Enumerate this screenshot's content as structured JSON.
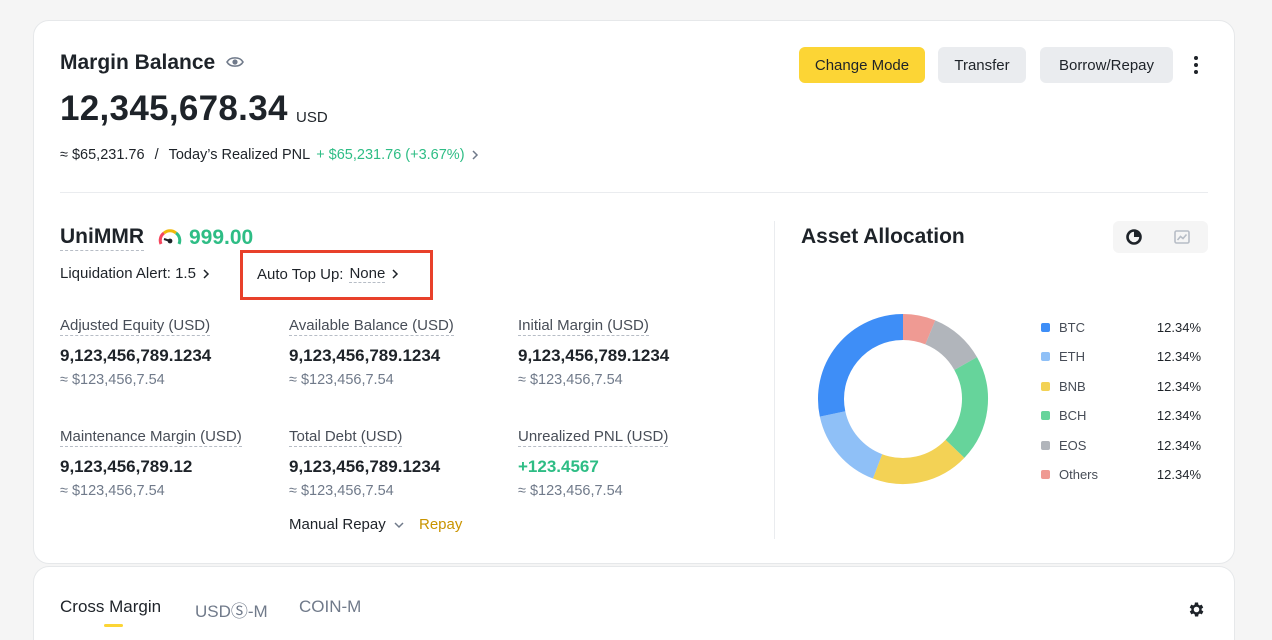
{
  "header": {
    "title": "Margin Balance",
    "balance": "12,345,678.34",
    "unit": "USD",
    "approx": "≈ $65,231.76",
    "separator": "/",
    "pnl_label": "Today’s Realized PNL",
    "pnl_value": "+ $65,231.76 (+3.67%)"
  },
  "buttons": {
    "change_mode": "Change Mode",
    "transfer": "Transfer",
    "borrow_repay": "Borrow/Repay"
  },
  "unimmr": {
    "label": "UniMMR",
    "value": "999.00",
    "liquidation_alert": "Liquidation Alert: 1.5",
    "auto_topup_label": "Auto Top Up:",
    "auto_topup_value": "None"
  },
  "metrics": [
    {
      "label": "Adjusted Equity (USD)",
      "value": "9,123,456,789.1234",
      "approx": "≈ $123,456,7.54"
    },
    {
      "label": "Available Balance (USD)",
      "value": "9,123,456,789.1234",
      "approx": "≈ $123,456,7.54"
    },
    {
      "label": "Initial Margin (USD)",
      "value": "9,123,456,789.1234",
      "approx": "≈ $123,456,7.54"
    },
    {
      "label": "Maintenance Margin (USD)",
      "value": "9,123,456,789.12",
      "approx": "≈ $123,456,7.54"
    },
    {
      "label": "Total Debt (USD)",
      "value": "9,123,456,789.1234",
      "approx": "≈ $123,456,7.54"
    },
    {
      "label": "Unrealized PNL (USD)",
      "value": "+123.4567",
      "approx": "≈ $123,456,7.54"
    }
  ],
  "repay": {
    "manual_label": "Manual Repay",
    "repay_link": "Repay"
  },
  "allocation": {
    "title": "Asset Allocation",
    "items": [
      {
        "name": "BTC",
        "pct": "12.34%",
        "color": "#3e8ef7"
      },
      {
        "name": "ETH",
        "pct": "12.34%",
        "color": "#8fc0f7"
      },
      {
        "name": "BNB",
        "pct": "12.34%",
        "color": "#f3d255"
      },
      {
        "name": "BCH",
        "pct": "12.34%",
        "color": "#66d49b"
      },
      {
        "name": "EOS",
        "pct": "12.34%",
        "color": "#b1b5bb"
      },
      {
        "name": "Others",
        "pct": "12.34%",
        "color": "#ef9a93"
      }
    ]
  },
  "tabs": [
    {
      "label": "Cross Margin",
      "active": true
    },
    {
      "label": "USDⓈ-M",
      "active": false
    },
    {
      "label": "COIN-M",
      "active": false
    }
  ]
}
